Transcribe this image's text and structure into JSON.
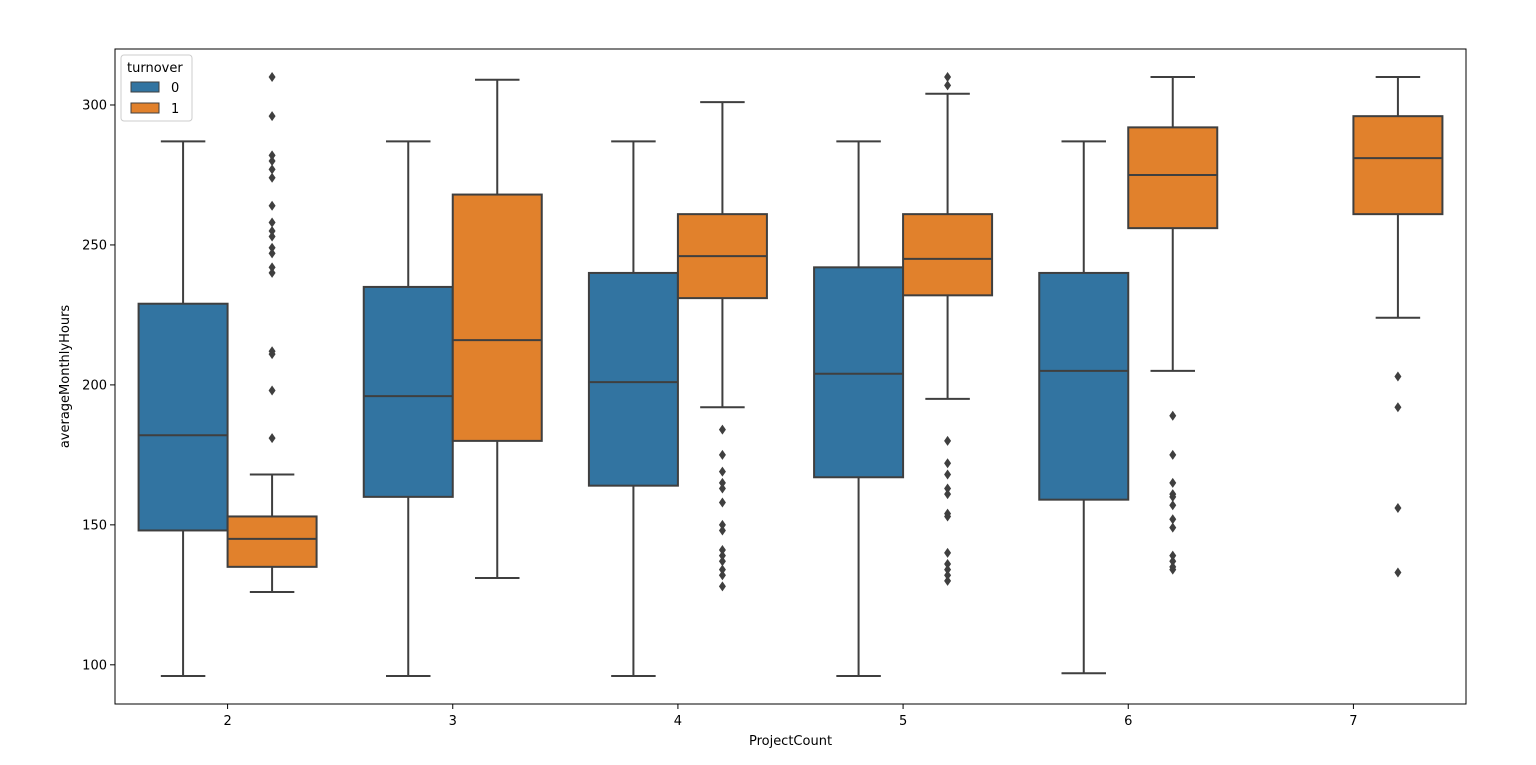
{
  "chart_data": {
    "type": "box",
    "xlabel": "ProjectCount",
    "ylabel": "averageMonthlyHours",
    "categories": [
      "2",
      "3",
      "4",
      "5",
      "6",
      "7"
    ],
    "ylim": [
      86,
      320
    ],
    "yticks": [
      100,
      150,
      200,
      250,
      300
    ],
    "legend": {
      "title": "turnover",
      "placement": "top-left",
      "entries": [
        {
          "label": "0",
          "color": "#3274a1"
        },
        {
          "label": "1",
          "color": "#e1812c"
        }
      ]
    },
    "series": [
      {
        "name": "0",
        "color": "#3274a1",
        "boxes": [
          {
            "category": "2",
            "whisker_low": 96,
            "q1": 148,
            "median": 182,
            "q3": 229,
            "whisker_high": 287,
            "outliers": []
          },
          {
            "category": "3",
            "whisker_low": 96,
            "q1": 160,
            "median": 196,
            "q3": 235,
            "whisker_high": 287,
            "outliers": []
          },
          {
            "category": "4",
            "whisker_low": 96,
            "q1": 164,
            "median": 201,
            "q3": 240,
            "whisker_high": 287,
            "outliers": []
          },
          {
            "category": "5",
            "whisker_low": 96,
            "q1": 167,
            "median": 204,
            "q3": 242,
            "whisker_high": 287,
            "outliers": []
          },
          {
            "category": "6",
            "whisker_low": 97,
            "q1": 159,
            "median": 205,
            "q3": 240,
            "whisker_high": 287,
            "outliers": []
          }
        ]
      },
      {
        "name": "1",
        "color": "#e1812c",
        "boxes": [
          {
            "category": "2",
            "whisker_low": 126,
            "q1": 135,
            "median": 145,
            "q3": 153,
            "whisker_high": 168,
            "outliers": [
              310,
              296,
              282,
              280,
              277,
              274,
              264,
              258,
              255,
              253,
              249,
              247,
              242,
              240,
              212,
              211,
              198,
              181
            ]
          },
          {
            "category": "3",
            "whisker_low": 131,
            "q1": 180,
            "median": 216,
            "q3": 268,
            "whisker_high": 309,
            "outliers": []
          },
          {
            "category": "4",
            "whisker_low": 192,
            "q1": 231,
            "median": 246,
            "q3": 261,
            "whisker_high": 301,
            "outliers": [
              184,
              175,
              169,
              165,
              163,
              158,
              150,
              148,
              141,
              139,
              137,
              134,
              132,
              128
            ]
          },
          {
            "category": "5",
            "whisker_low": 195,
            "q1": 232,
            "median": 245,
            "q3": 261,
            "whisker_high": 304,
            "outliers": [
              310,
              307,
              180,
              172,
              168,
              163,
              161,
              154,
              153,
              140,
              136,
              134,
              132,
              130
            ]
          },
          {
            "category": "6",
            "whisker_low": 205,
            "q1": 256,
            "median": 275,
            "q3": 292,
            "whisker_high": 310,
            "outliers": [
              189,
              175,
              165,
              161,
              160,
              157,
              152,
              149,
              139,
              137,
              135,
              134
            ]
          },
          {
            "category": "7",
            "whisker_low": 224,
            "q1": 261,
            "median": 281,
            "q3": 296,
            "whisker_high": 310,
            "outliers": [
              203,
              192,
              156,
              133
            ]
          }
        ]
      }
    ]
  }
}
